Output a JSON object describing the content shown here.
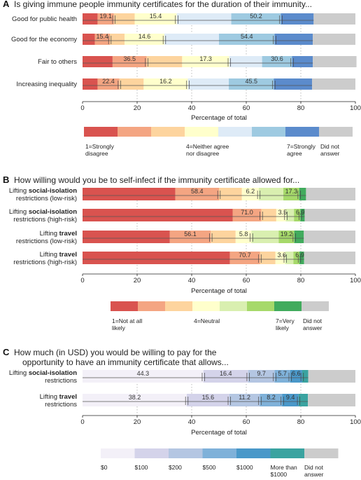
{
  "chart_data": [
    {
      "type": "bar",
      "stacked": true,
      "orientation": "horizontal",
      "panel_letter": "A",
      "title": "Is giving immune people immunity certificates for the duration of their immunity...",
      "xlabel": "Percentage of total",
      "xlim": [
        0,
        100
      ],
      "xticks": [
        "0",
        "20",
        "40",
        "60",
        "80",
        "100"
      ],
      "categories": [
        "Good for public health",
        "Good for the economy",
        "Fair to others",
        "Increasing inequality"
      ],
      "series": [
        {
          "name": "1=Strongly disagree",
          "color": "#d9534f",
          "values": [
            5.5,
            4.5,
            11.0,
            5.5
          ]
        },
        {
          "name": "",
          "color": "#f4a582",
          "values": [
            6.0,
            5.5,
            12.5,
            8.0
          ]
        },
        {
          "name": "",
          "color": "#fdd49e",
          "values": [
            7.6,
            5.4,
            13.0,
            8.9
          ]
        },
        {
          "name": "4=Neither agree nor disagree",
          "color": "#ffffcc",
          "values": [
            15.4,
            14.6,
            17.3,
            16.2
          ]
        },
        {
          "name": "",
          "color": "#deebf7",
          "values": [
            20.0,
            20.0,
            12.0,
            15.0
          ]
        },
        {
          "name": "",
          "color": "#9ecae1",
          "values": [
            18.2,
            20.4,
            11.0,
            16.5
          ]
        },
        {
          "name": "7=Strongly agree",
          "color": "#5b8bcc",
          "values": [
            12.0,
            14.0,
            7.6,
            14.0
          ]
        },
        {
          "name": "Did not answer",
          "color": "#cccccc",
          "values": [
            15.3,
            15.6,
            16.0,
            15.9
          ]
        }
      ],
      "bar_labels": [
        [
          {
            "segment": 1,
            "text": "19.1"
          },
          {
            "segment": 3,
            "text": "15.4"
          },
          {
            "segment": 5,
            "text": "50.2"
          }
        ],
        [
          {
            "segment": 1,
            "text": "15.4"
          },
          {
            "segment": 3,
            "text": "14.6"
          },
          {
            "segment": 5,
            "text": "54.4"
          }
        ],
        [
          {
            "segment": 1,
            "text": "36.5"
          },
          {
            "segment": 3,
            "text": "17.3"
          },
          {
            "segment": 5,
            "text": "30.6"
          }
        ],
        [
          {
            "segment": 1,
            "text": "22.4"
          },
          {
            "segment": 3,
            "text": "16.2"
          },
          {
            "segment": 5,
            "text": "45.5"
          }
        ]
      ],
      "legend_labels": [
        {
          "text": "1=Strongly\ndisagree",
          "at": 0
        },
        {
          "text": "4=Neither agree\nnor disagree",
          "at": 3
        },
        {
          "text": "7=Strongly\nagree",
          "at": 6
        },
        {
          "text": "Did not\nanswer",
          "at": 7
        }
      ]
    },
    {
      "type": "bar",
      "stacked": true,
      "orientation": "horizontal",
      "panel_letter": "B",
      "title": "How willing would you be to self-infect if the immunity certificate allowed for...",
      "xlabel": "Percentage of total",
      "xlim": [
        0,
        100
      ],
      "xticks": [
        "0",
        "20",
        "40",
        "60",
        "80",
        "100"
      ],
      "categories": [
        {
          "pre": "Lifting ",
          "bold": "social-isolation",
          "line2": "restrictions (low-risk)"
        },
        {
          "pre": "Lifting ",
          "bold": "social-isolation",
          "line2": "restrictions (high-risk)"
        },
        {
          "pre": "Lifting ",
          "bold": "travel",
          "line2": "restrictions (low-risk)"
        },
        {
          "pre": "Lifting ",
          "bold": "travel",
          "line2": "restrictions (high-risk)"
        }
      ],
      "series": [
        {
          "name": "1=Not at all likely",
          "color": "#d9534f",
          "values": [
            34.0,
            55.0,
            32.0,
            54.0
          ]
        },
        {
          "name": "",
          "color": "#f4a582",
          "values": [
            16.0,
            10.5,
            15.0,
            11.0
          ]
        },
        {
          "name": "",
          "color": "#fdd49e",
          "values": [
            8.4,
            5.5,
            9.1,
            5.7
          ]
        },
        {
          "name": "4=Neutral",
          "color": "#ffffcc",
          "values": [
            6.2,
            3.5,
            5.8,
            3.6
          ]
        },
        {
          "name": "",
          "color": "#d9efb0",
          "values": [
            9.0,
            3.0,
            10.0,
            3.0
          ]
        },
        {
          "name": "",
          "color": "#a6d96a",
          "values": [
            5.8,
            2.3,
            5.7,
            2.2
          ]
        },
        {
          "name": "7=Very likely",
          "color": "#41ab5d",
          "values": [
            2.5,
            1.6,
            3.5,
            1.7
          ]
        },
        {
          "name": "Did not answer",
          "color": "#cccccc",
          "values": [
            18.1,
            18.6,
            18.9,
            18.8
          ]
        }
      ],
      "bar_labels": [
        [
          {
            "segment": 1,
            "text": "58.4"
          },
          {
            "segment": 3,
            "text": "6.2"
          },
          {
            "segment": 5,
            "text": "17.3"
          }
        ],
        [
          {
            "segment": 1,
            "text": "71.0"
          },
          {
            "segment": 3,
            "text": "3.5"
          },
          {
            "segment": 5,
            "text": "6.9"
          }
        ],
        [
          {
            "segment": 1,
            "text": "56.1"
          },
          {
            "segment": 3,
            "text": "5.8"
          },
          {
            "segment": 5,
            "text": "19.2"
          }
        ],
        [
          {
            "segment": 1,
            "text": "70.7"
          },
          {
            "segment": 3,
            "text": "3.6"
          },
          {
            "segment": 5,
            "text": "6.9"
          }
        ]
      ],
      "legend_labels": [
        {
          "text": "1=Not at all\nlikely",
          "at": 0
        },
        {
          "text": "4=Neutral",
          "at": 3
        },
        {
          "text": "7=Very\nlikely",
          "at": 6
        },
        {
          "text": "Did not\nanswer",
          "at": 7
        }
      ]
    },
    {
      "type": "bar",
      "stacked": true,
      "orientation": "horizontal",
      "panel_letter": "C",
      "title": "How much (in USD) you would be willing to pay for the\nopportunity to have an immunity certificate that allows...",
      "xlabel": "Percentage of total",
      "xlim": [
        0,
        100
      ],
      "xticks": [
        "0",
        "20",
        "40",
        "60",
        "80",
        "100"
      ],
      "categories": [
        {
          "pre": "Lifting ",
          "bold": "social-isolation",
          "line2": "restrictions"
        },
        {
          "pre": "Lifting ",
          "bold": "travel",
          "line2": "restrictions"
        }
      ],
      "series": [
        {
          "name": "$0",
          "color": "#f3f0f8",
          "values": [
            44.3,
            38.2
          ]
        },
        {
          "name": "$100",
          "color": "#d4d3ea",
          "values": [
            16.4,
            15.6
          ]
        },
        {
          "name": "$200",
          "color": "#b4c6e2",
          "values": [
            9.7,
            11.2
          ]
        },
        {
          "name": "$500",
          "color": "#7fb1d9",
          "values": [
            5.7,
            8.2
          ]
        },
        {
          "name": "$1000",
          "color": "#4a98c9",
          "values": [
            4.4,
            6.0
          ]
        },
        {
          "name": "More than $1000",
          "color": "#3aa3a0",
          "values": [
            2.2,
            3.4
          ]
        },
        {
          "name": "Did not answer",
          "color": "#cccccc",
          "values": [
            17.3,
            17.4
          ]
        }
      ],
      "bar_labels": [
        [
          {
            "segment": 0,
            "text": "44.3"
          },
          {
            "segment": 1,
            "text": "16.4"
          },
          {
            "segment": 2,
            "text": "9.7"
          },
          {
            "segment": 3,
            "text": "5.7"
          },
          {
            "segment": 4,
            "text": "6.6"
          }
        ],
        [
          {
            "segment": 0,
            "text": "38.2"
          },
          {
            "segment": 1,
            "text": "15.6"
          },
          {
            "segment": 2,
            "text": "11.2"
          },
          {
            "segment": 3,
            "text": "8.2"
          },
          {
            "segment": 4,
            "text": "9.4"
          }
        ]
      ],
      "legend_labels": [
        {
          "text": "$0",
          "at": 0
        },
        {
          "text": "$100",
          "at": 1
        },
        {
          "text": "$200",
          "at": 2
        },
        {
          "text": "$500",
          "at": 3
        },
        {
          "text": "$1000",
          "at": 4
        },
        {
          "text": "More than\n$1000",
          "at": 5
        },
        {
          "text": "Did not\nanswer",
          "at": 6
        }
      ]
    }
  ]
}
